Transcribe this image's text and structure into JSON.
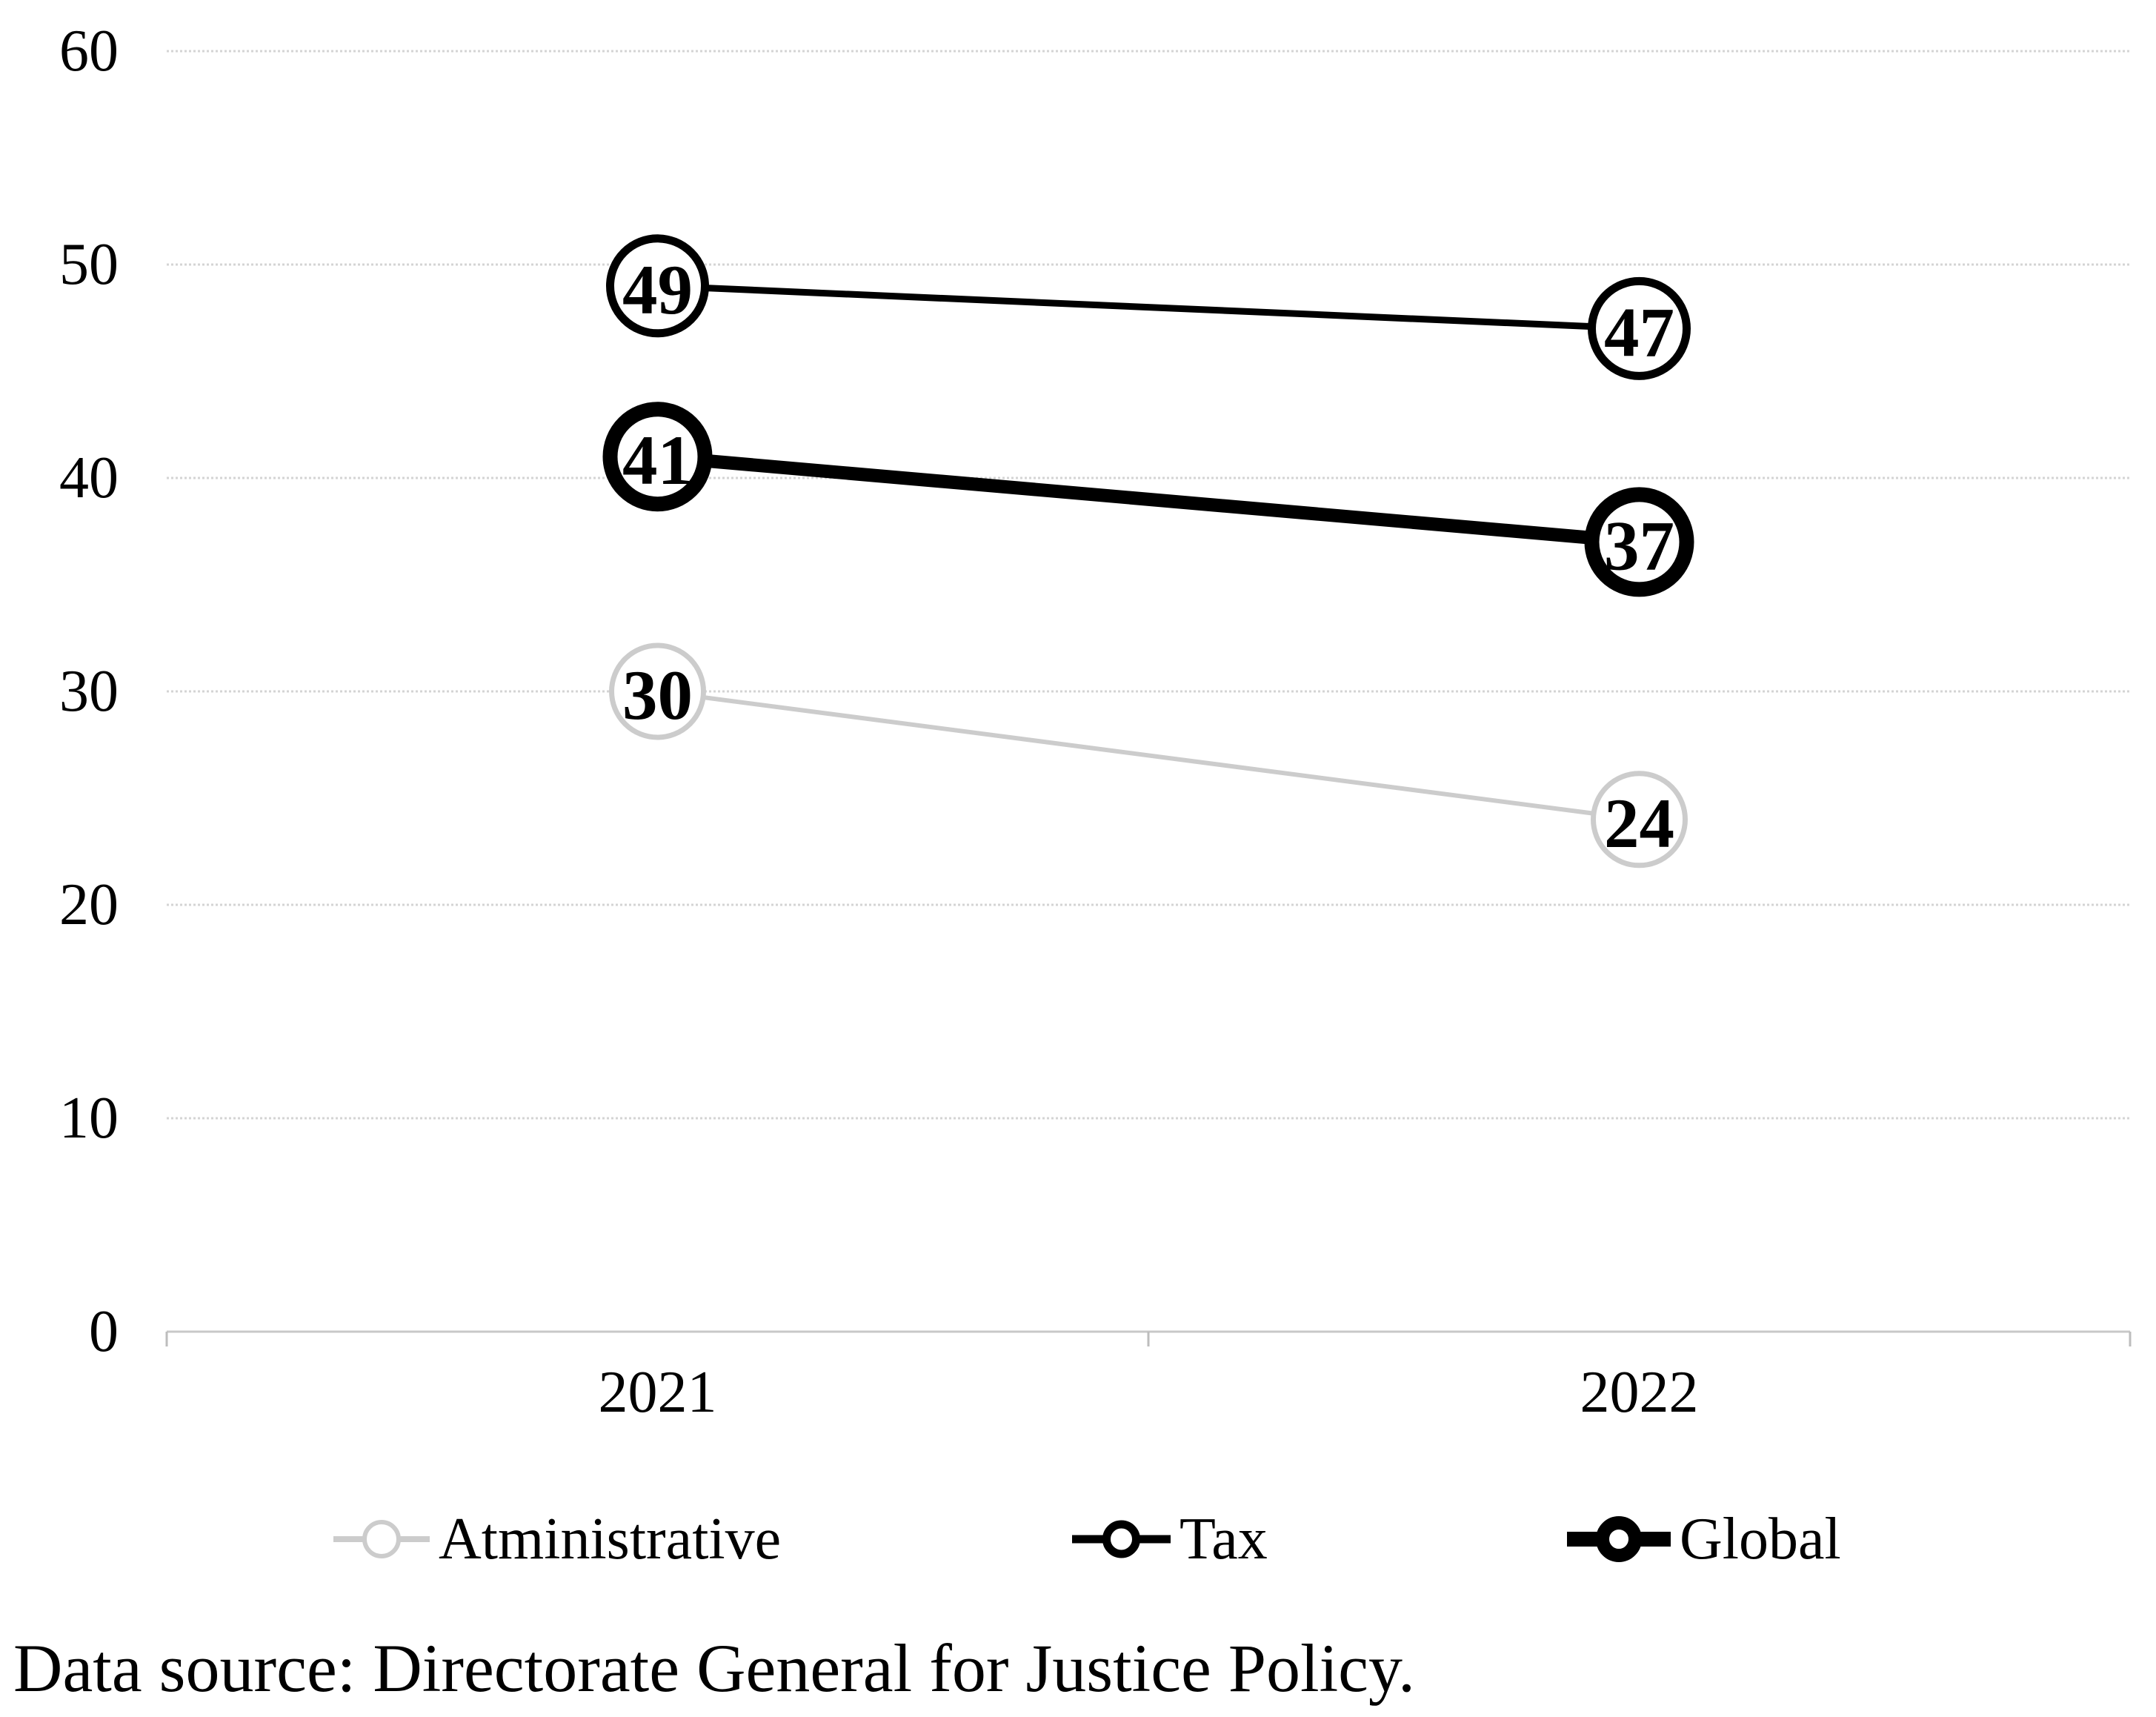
{
  "chart_data": {
    "type": "line",
    "title": "",
    "xlabel": "",
    "ylabel": "",
    "categories": [
      "2021",
      "2022"
    ],
    "series": [
      {
        "name": "Atministrative",
        "values": [
          30,
          24
        ],
        "color": "#cccccc",
        "line_width": 6,
        "marker": {
          "radius": 62,
          "stroke_width": 7,
          "fill": "#ffffff"
        },
        "legend_marker": {
          "line_len": 130,
          "circle_radius": 23,
          "circle_stroke": 6
        }
      },
      {
        "name": "Tax",
        "values": [
          49,
          47
        ],
        "color": "#000000",
        "line_width": 9,
        "marker": {
          "radius": 64,
          "stroke_width": 11,
          "fill": "#ffffff"
        },
        "legend_marker": {
          "line_len": 133,
          "circle_radius": 20,
          "circle_stroke": 11
        }
      },
      {
        "name": "Global",
        "values": [
          41,
          37
        ],
        "color": "#000000",
        "line_width": 18,
        "marker": {
          "radius": 64,
          "stroke_width": 20,
          "fill": "#ffffff"
        },
        "legend_marker": {
          "line_len": 140,
          "circle_radius": 22,
          "circle_stroke": 18
        }
      }
    ],
    "ylim": [
      0,
      60
    ],
    "yticks": [
      0,
      10,
      20,
      30,
      40,
      50,
      60
    ],
    "grid": true,
    "gridline_color": "#d4d4d4",
    "baseline_color": "#c8c8c8",
    "tick_color": "#bdbdbd",
    "data_labels": "inside_circle_markers",
    "data_label_color": "#000000",
    "legend_position": "bottom"
  },
  "source_note": "Data source: Directorate General for Justice Policy."
}
